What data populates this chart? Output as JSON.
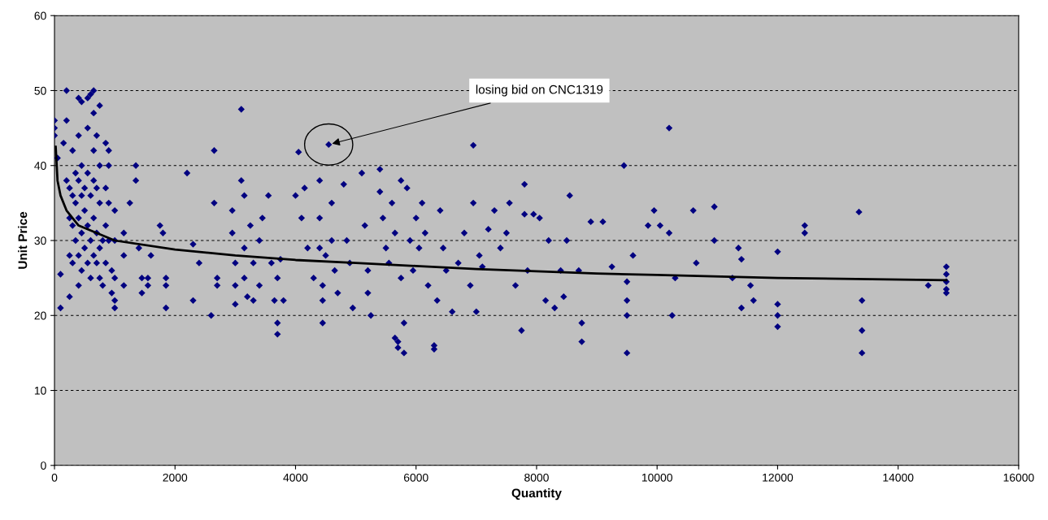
{
  "chart_data": {
    "type": "scatter",
    "xlabel": "Quantity",
    "ylabel": "Unit Price",
    "xlim": [
      0,
      16000
    ],
    "xticks": [
      0,
      2000,
      4000,
      6000,
      8000,
      10000,
      12000,
      14000,
      16000
    ],
    "ylim": [
      0,
      60
    ],
    "yticks": [
      0,
      10,
      20,
      30,
      40,
      50,
      60
    ],
    "grid": "y",
    "marker": "diamond",
    "legend": false,
    "annotations": [
      {
        "text": "losing bid on CNC1319",
        "x": 4550,
        "y": 42.8
      }
    ],
    "series": [
      {
        "color": "#000080",
        "x": [
          0,
          0,
          0,
          50,
          100,
          100,
          150,
          200,
          200,
          200,
          250,
          250,
          250,
          250,
          300,
          300,
          300,
          300,
          350,
          350,
          350,
          400,
          400,
          400,
          400,
          400,
          400,
          450,
          450,
          450,
          450,
          450,
          500,
          500,
          500,
          550,
          550,
          550,
          550,
          550,
          600,
          600,
          600,
          600,
          650,
          650,
          650,
          650,
          650,
          650,
          700,
          700,
          700,
          700,
          750,
          750,
          750,
          750,
          750,
          800,
          800,
          850,
          850,
          850,
          850,
          900,
          900,
          900,
          900,
          950,
          950,
          1000,
          1000,
          1000,
          1000,
          1000,
          1150,
          1150,
          1150,
          1250,
          1350,
          1350,
          1400,
          1450,
          1450,
          1550,
          1550,
          1600,
          1750,
          1800,
          1850,
          1850,
          1850,
          2200,
          2300,
          2300,
          2400,
          2600,
          2650,
          2650,
          2700,
          2700,
          2950,
          2950,
          3000,
          3000,
          3000,
          3100,
          3100,
          3150,
          3150,
          3150,
          3200,
          3250,
          3300,
          3300,
          3400,
          3400,
          3450,
          3550,
          3600,
          3650,
          3700,
          3700,
          3700,
          3750,
          3800,
          4000,
          4050,
          4100,
          4150,
          4200,
          4300,
          4400,
          4400,
          4400,
          4450,
          4450,
          4450,
          4500,
          4550,
          4600,
          4600,
          4650,
          4700,
          4800,
          4850,
          4900,
          4950,
          5100,
          5150,
          5200,
          5200,
          5250,
          5400,
          5400,
          5450,
          5500,
          5550,
          5600,
          5650,
          5650,
          5700,
          5700,
          5750,
          5750,
          5800,
          5800,
          5850,
          5900,
          5950,
          6000,
          6050,
          6100,
          6150,
          6200,
          6300,
          6300,
          6350,
          6400,
          6450,
          6500,
          6600,
          6700,
          6800,
          6900,
          6950,
          6950,
          7000,
          7050,
          7100,
          7200,
          7300,
          7400,
          7500,
          7550,
          7650,
          7750,
          7800,
          7800,
          7850,
          7950,
          8050,
          8150,
          8200,
          8300,
          8400,
          8450,
          8500,
          8550,
          8700,
          8750,
          8750,
          8900,
          9100,
          9250,
          9450,
          9500,
          9500,
          9500,
          9500,
          9600,
          9850,
          9950,
          10050,
          10200,
          10200,
          10250,
          10300,
          10600,
          10650,
          10950,
          10950,
          11250,
          11350,
          11400,
          11400,
          11550,
          11600,
          12000,
          12000,
          12000,
          12000,
          12450,
          12450,
          13350,
          13400,
          13400,
          13400,
          14500,
          14800,
          14800,
          14800,
          14800,
          14800
        ],
        "values": [
          46,
          45,
          44,
          41,
          25.5,
          21,
          43,
          50,
          46,
          38,
          37,
          33,
          28,
          22.5,
          42,
          36,
          32,
          27,
          39,
          35,
          30,
          49,
          44,
          38,
          33,
          28,
          24,
          48.5,
          40,
          36,
          31,
          26,
          37,
          34,
          29,
          49,
          45,
          39,
          32,
          27,
          49.5,
          36,
          30,
          25,
          50,
          47,
          42,
          38,
          33,
          28,
          44,
          37,
          31,
          27,
          48,
          40,
          35,
          29,
          25,
          30,
          24,
          43,
          37,
          32,
          27,
          42,
          40,
          35,
          30,
          26,
          23,
          34,
          30,
          25,
          22,
          21,
          31,
          28,
          24,
          35,
          40,
          38,
          29,
          25,
          23,
          25,
          24,
          28,
          32,
          31,
          25,
          21,
          24,
          39,
          29.5,
          22,
          27,
          20,
          42,
          35,
          25,
          24,
          34,
          31,
          27,
          24,
          21.5,
          47.5,
          38,
          36,
          29,
          25,
          22.5,
          32,
          27,
          22,
          30,
          24,
          33,
          36,
          27,
          22,
          17.5,
          19,
          25,
          27.5,
          22,
          36,
          41.8,
          33,
          37,
          29,
          25,
          38,
          33,
          29,
          24,
          22,
          19,
          28,
          42.8,
          35,
          30,
          26,
          23,
          37.5,
          30,
          27,
          21,
          39,
          32,
          26,
          23,
          20,
          39.5,
          36.5,
          33,
          29,
          27,
          35,
          31,
          17,
          15.7,
          16.5,
          38,
          25,
          19,
          15,
          37,
          30,
          26,
          33,
          29,
          35,
          31,
          24,
          16,
          15.5,
          22,
          34,
          29,
          26,
          20.5,
          27,
          31,
          24,
          35,
          42.7,
          20.5,
          28,
          26.5,
          31.5,
          34,
          29,
          31,
          35,
          24,
          18,
          37.5,
          33.5,
          26,
          33.5,
          33,
          22,
          30,
          21,
          26,
          22.5,
          30,
          36,
          26,
          16.5,
          19,
          32.5,
          32.5,
          26.5,
          40,
          24.5,
          22,
          20,
          15,
          28,
          32,
          34,
          32,
          45,
          31,
          20,
          25,
          34,
          27,
          30,
          34.5,
          25,
          29,
          21,
          27.5,
          24,
          22,
          21.5,
          20,
          18.5,
          28.5,
          32,
          31,
          33.8,
          22,
          18,
          15,
          24,
          26.5,
          25.5,
          24.5,
          23.5,
          23
        ]
      },
      {
        "type": "line",
        "color": "#000000",
        "marker": "none",
        "x": [
          20,
          50,
          100,
          200,
          400,
          700,
          1000,
          2000,
          3000,
          4000,
          5000,
          6000,
          7000,
          8000,
          9000,
          10000,
          12000,
          14800
        ],
        "values": [
          42.5,
          38,
          36,
          34,
          32,
          31,
          30,
          28.8,
          28,
          27.4,
          27,
          26.6,
          26.2,
          25.9,
          25.6,
          25.4,
          25,
          24.7
        ]
      }
    ]
  }
}
